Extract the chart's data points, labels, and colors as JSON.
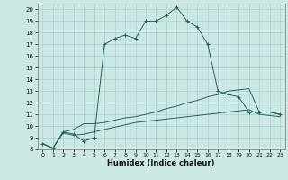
{
  "xlabel": "Humidex (Indice chaleur)",
  "bg_color": "#cce8e4",
  "grid_color": "#aad0cc",
  "line_color": "#206858",
  "xlim": [
    -0.5,
    23.5
  ],
  "ylim": [
    8,
    20.5
  ],
  "xticks": [
    0,
    1,
    2,
    3,
    4,
    5,
    6,
    7,
    8,
    9,
    10,
    11,
    12,
    13,
    14,
    15,
    16,
    17,
    18,
    19,
    20,
    21,
    22,
    23
  ],
  "yticks": [
    8,
    9,
    10,
    11,
    12,
    13,
    14,
    15,
    16,
    17,
    18,
    19,
    20
  ],
  "curve1_x": [
    0,
    1,
    2,
    3,
    4,
    5,
    6,
    7,
    8,
    9,
    10,
    11,
    12,
    13,
    14,
    15,
    16,
    17,
    18,
    19,
    20,
    21,
    22,
    23
  ],
  "curve1_y": [
    8.5,
    8.1,
    9.5,
    9.3,
    8.7,
    9.0,
    17.0,
    17.5,
    17.8,
    17.5,
    19.0,
    19.0,
    19.5,
    20.2,
    19.0,
    18.5,
    17.0,
    13.0,
    12.7,
    12.5,
    11.2,
    11.2,
    11.2,
    11.0
  ],
  "curve2_x": [
    0,
    1,
    2,
    3,
    4,
    5,
    6,
    7,
    8,
    9,
    10,
    11,
    12,
    13,
    14,
    15,
    16,
    17,
    18,
    19,
    20,
    21,
    22,
    23
  ],
  "curve2_y": [
    8.5,
    8.1,
    9.5,
    9.7,
    10.2,
    10.2,
    10.3,
    10.5,
    10.7,
    10.8,
    11.0,
    11.2,
    11.5,
    11.7,
    12.0,
    12.2,
    12.5,
    12.7,
    13.0,
    13.1,
    13.2,
    11.2,
    11.2,
    11.0
  ],
  "curve3_x": [
    0,
    1,
    2,
    3,
    4,
    5,
    6,
    7,
    8,
    9,
    10,
    11,
    12,
    13,
    14,
    15,
    16,
    17,
    18,
    19,
    20,
    21,
    22,
    23
  ],
  "curve3_y": [
    8.5,
    8.1,
    9.4,
    9.2,
    9.3,
    9.5,
    9.7,
    9.9,
    10.1,
    10.3,
    10.4,
    10.5,
    10.6,
    10.7,
    10.8,
    10.9,
    11.0,
    11.1,
    11.2,
    11.3,
    11.4,
    11.0,
    10.9,
    10.8
  ],
  "markers_x": [
    0,
    1,
    2,
    3,
    4,
    5,
    6,
    7,
    8,
    9,
    10,
    11,
    12,
    13,
    14,
    15,
    16,
    17,
    18,
    19,
    20,
    21,
    23
  ],
  "markers_y": [
    8.5,
    8.1,
    9.5,
    9.3,
    8.7,
    9.0,
    17.0,
    17.5,
    17.8,
    17.5,
    19.0,
    19.0,
    19.5,
    20.2,
    19.0,
    18.5,
    17.0,
    13.0,
    12.7,
    12.5,
    11.2,
    11.2,
    11.0
  ]
}
